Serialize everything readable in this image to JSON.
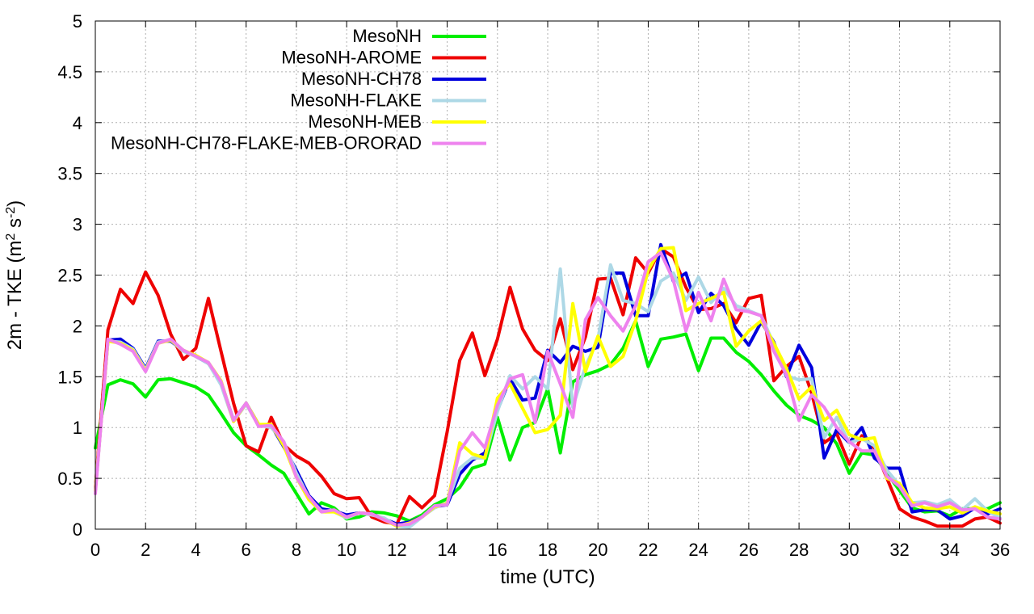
{
  "chart_data": {
    "type": "line",
    "title": "",
    "xlabel": "time (UTC)",
    "ylabel": "2m - TKE (m² s⁻²)",
    "ylabel_parts": {
      "main": "2m - TKE (m",
      "exp1": "2",
      "mid": " s",
      "exp2": "-2",
      "end": ")"
    },
    "xlim": [
      0,
      36
    ],
    "ylim": [
      0,
      5
    ],
    "xticks": [
      0,
      2,
      4,
      6,
      8,
      10,
      12,
      14,
      16,
      18,
      20,
      22,
      24,
      26,
      28,
      30,
      32,
      34,
      36
    ],
    "yticks": [
      0,
      0.5,
      1,
      1.5,
      2,
      2.5,
      3,
      3.5,
      4,
      4.5,
      5
    ],
    "ytick_labels": [
      "0",
      "0.5",
      "1",
      "1.5",
      "2",
      "2.5",
      "3",
      "3.5",
      "4",
      "4.5",
      "5"
    ],
    "grid": true,
    "legend_position": "top-left",
    "series": [
      {
        "name": "MesoNH",
        "color": "#00ee00",
        "x": [
          0,
          0.5,
          1,
          1.5,
          2,
          2.5,
          3,
          3.5,
          4,
          4.5,
          5,
          5.5,
          6,
          6.5,
          7,
          7.5,
          8,
          8.5,
          9,
          9.5,
          10,
          10.5,
          11,
          11.5,
          12,
          12.5,
          13,
          13.5,
          14,
          14.5,
          15,
          15.5,
          16,
          16.5,
          17,
          17.5,
          18,
          18.5,
          19,
          19.5,
          20,
          20.5,
          21,
          21.5,
          22,
          22.5,
          23,
          23.5,
          24,
          24.5,
          25,
          25.5,
          26,
          26.5,
          27,
          27.5,
          28,
          28.5,
          29,
          29.5,
          30,
          30.5,
          31,
          31.5,
          32,
          32.5,
          33,
          33.5,
          34,
          34.5,
          35,
          35.5,
          36
        ],
        "values": [
          0.8,
          1.42,
          1.47,
          1.43,
          1.3,
          1.47,
          1.48,
          1.44,
          1.4,
          1.32,
          1.14,
          0.95,
          0.82,
          0.73,
          0.63,
          0.55,
          0.35,
          0.15,
          0.26,
          0.21,
          0.1,
          0.12,
          0.17,
          0.16,
          0.13,
          0.08,
          0.14,
          0.24,
          0.3,
          0.41,
          0.6,
          0.64,
          1.1,
          0.68,
          1.0,
          1.05,
          1.38,
          0.75,
          1.45,
          1.52,
          1.56,
          1.62,
          1.78,
          2.05,
          1.6,
          1.87,
          1.89,
          1.92,
          1.56,
          1.88,
          1.88,
          1.74,
          1.65,
          1.52,
          1.36,
          1.22,
          1.12,
          1.07,
          1.0,
          0.84,
          0.55,
          0.75,
          0.73,
          0.55,
          0.38,
          0.21,
          0.17,
          0.18,
          0.13,
          0.2,
          0.2,
          0.2,
          0.26
        ]
      },
      {
        "name": "MesoNH-AROME",
        "color": "#ee0000",
        "x": [
          0,
          0.5,
          1,
          1.5,
          2,
          2.5,
          3,
          3.5,
          4,
          4.5,
          5,
          5.5,
          6,
          6.5,
          7,
          7.5,
          8,
          8.5,
          9,
          9.5,
          10,
          10.5,
          11,
          11.5,
          12,
          12.5,
          13,
          13.5,
          14,
          14.5,
          15,
          15.5,
          16,
          16.5,
          17,
          17.5,
          18,
          18.5,
          19,
          19.5,
          20,
          20.5,
          21,
          21.5,
          22,
          22.5,
          23,
          23.5,
          24,
          24.5,
          25,
          25.5,
          26,
          26.5,
          27,
          27.5,
          28,
          28.5,
          29,
          29.5,
          30,
          30.5,
          31,
          31.5,
          32,
          32.5,
          33,
          33.5,
          34,
          34.5,
          35,
          35.5,
          36
        ],
        "values": [
          0.4,
          1.96,
          2.36,
          2.22,
          2.53,
          2.3,
          1.92,
          1.67,
          1.78,
          2.27,
          1.75,
          1.24,
          0.82,
          0.76,
          1.1,
          0.83,
          0.72,
          0.65,
          0.52,
          0.35,
          0.3,
          0.31,
          0.12,
          0.07,
          0.05,
          0.32,
          0.21,
          0.33,
          0.96,
          1.66,
          1.93,
          1.51,
          1.87,
          2.38,
          1.97,
          1.76,
          1.66,
          2.07,
          1.57,
          1.89,
          2.46,
          2.47,
          2.11,
          2.67,
          2.52,
          2.76,
          2.68,
          2.38,
          2.16,
          2.17,
          2.22,
          2.03,
          2.27,
          2.3,
          1.46,
          1.6,
          1.7,
          1.34,
          0.85,
          0.94,
          0.64,
          0.92,
          0.8,
          0.5,
          0.2,
          0.12,
          0.08,
          0.03,
          0.03,
          0.03,
          0.1,
          0.12,
          0.06
        ]
      },
      {
        "name": "MesoNH-CH78",
        "color": "#0000dd",
        "x": [
          0,
          0.5,
          1,
          1.5,
          2,
          2.5,
          3,
          3.5,
          4,
          4.5,
          5,
          5.5,
          6,
          6.5,
          7,
          7.5,
          8,
          8.5,
          9,
          9.5,
          10,
          10.5,
          11,
          11.5,
          12,
          12.5,
          13,
          13.5,
          14,
          14.5,
          15,
          15.5,
          16,
          16.5,
          17,
          17.5,
          18,
          18.5,
          19,
          19.5,
          20,
          20.5,
          21,
          21.5,
          22,
          22.5,
          23,
          23.5,
          24,
          24.5,
          25,
          25.5,
          26,
          26.5,
          27,
          27.5,
          28,
          28.5,
          29,
          29.5,
          30,
          30.5,
          31,
          31.5,
          32,
          32.5,
          33,
          33.5,
          34,
          34.5,
          35,
          35.5,
          36
        ],
        "values": [
          0.38,
          1.86,
          1.87,
          1.78,
          1.58,
          1.85,
          1.85,
          1.76,
          1.7,
          1.63,
          1.45,
          1.07,
          1.24,
          1.03,
          1.02,
          0.81,
          0.58,
          0.33,
          0.2,
          0.18,
          0.14,
          0.16,
          0.15,
          0.1,
          0.05,
          0.07,
          0.12,
          0.22,
          0.24,
          0.54,
          0.68,
          0.75,
          1.17,
          1.48,
          1.27,
          1.29,
          1.76,
          1.64,
          1.8,
          1.75,
          1.79,
          2.52,
          2.52,
          2.1,
          2.1,
          2.8,
          2.44,
          2.52,
          2.13,
          2.32,
          2.2,
          1.97,
          1.81,
          2.04,
          1.84,
          1.5,
          1.81,
          1.59,
          0.7,
          0.98,
          0.85,
          1.0,
          0.7,
          0.6,
          0.6,
          0.17,
          0.19,
          0.19,
          0.1,
          0.13,
          0.21,
          0.15,
          0.2
        ]
      },
      {
        "name": "MesoNH-FLAKE",
        "color": "#add8e6",
        "x": [
          0,
          0.5,
          1,
          1.5,
          2,
          2.5,
          3,
          3.5,
          4,
          4.5,
          5,
          5.5,
          6,
          6.5,
          7,
          7.5,
          8,
          8.5,
          9,
          9.5,
          10,
          10.5,
          11,
          11.5,
          12,
          12.5,
          13,
          13.5,
          14,
          14.5,
          15,
          15.5,
          16,
          16.5,
          17,
          17.5,
          18,
          18.5,
          19,
          19.5,
          20,
          20.5,
          21,
          21.5,
          22,
          22.5,
          23,
          23.5,
          24,
          24.5,
          25,
          25.5,
          26,
          26.5,
          27,
          27.5,
          28,
          28.5,
          29,
          29.5,
          30,
          30.5,
          31,
          31.5,
          32,
          32.5,
          33,
          33.5,
          34,
          34.5,
          35,
          35.5,
          36
        ],
        "values": [
          0.38,
          1.85,
          1.84,
          1.77,
          1.57,
          1.84,
          1.86,
          1.75,
          1.7,
          1.63,
          1.42,
          1.06,
          1.23,
          1.02,
          1.0,
          0.86,
          0.55,
          0.31,
          0.18,
          0.17,
          0.11,
          0.16,
          0.14,
          0.11,
          0.03,
          0.02,
          0.12,
          0.21,
          0.26,
          0.6,
          0.7,
          0.7,
          1.16,
          1.51,
          1.38,
          1.5,
          1.38,
          2.56,
          1.2,
          1.6,
          1.87,
          2.6,
          2.25,
          2.22,
          2.14,
          2.44,
          2.52,
          2.25,
          2.48,
          2.23,
          2.37,
          2.2,
          2.15,
          2.1,
          1.82,
          1.51,
          1.47,
          1.48,
          0.9,
          1.1,
          0.85,
          0.89,
          0.82,
          0.58,
          0.43,
          0.26,
          0.27,
          0.24,
          0.29,
          0.19,
          0.3,
          0.18,
          0.11
        ]
      },
      {
        "name": "MesoNH-MEB",
        "color": "#ffff00",
        "x": [
          0,
          0.5,
          1,
          1.5,
          2,
          2.5,
          3,
          3.5,
          4,
          4.5,
          5,
          5.5,
          6,
          6.5,
          7,
          7.5,
          8,
          8.5,
          9,
          9.5,
          10,
          10.5,
          11,
          11.5,
          12,
          12.5,
          13,
          13.5,
          14,
          14.5,
          15,
          15.5,
          16,
          16.5,
          17,
          17.5,
          18,
          18.5,
          19,
          19.5,
          20,
          20.5,
          21,
          21.5,
          22,
          22.5,
          23,
          23.5,
          24,
          24.5,
          25,
          25.5,
          26,
          26.5,
          27,
          27.5,
          28,
          28.5,
          29,
          29.5,
          30,
          30.5,
          31,
          31.5,
          32,
          32.5,
          33,
          33.5,
          34,
          34.5,
          35,
          35.5,
          36
        ],
        "values": [
          0.38,
          1.85,
          1.83,
          1.76,
          1.56,
          1.83,
          1.86,
          1.76,
          1.71,
          1.64,
          1.46,
          1.06,
          1.24,
          1.03,
          1.03,
          0.82,
          0.51,
          0.29,
          0.17,
          0.17,
          0.12,
          0.16,
          0.15,
          0.09,
          0.03,
          0.06,
          0.12,
          0.22,
          0.25,
          0.85,
          0.74,
          0.7,
          1.29,
          1.43,
          1.19,
          0.95,
          0.98,
          1.12,
          2.22,
          1.55,
          1.9,
          1.6,
          1.7,
          2.05,
          2.55,
          2.76,
          2.77,
          2.15,
          2.22,
          2.27,
          2.33,
          1.8,
          1.95,
          2.05,
          1.83,
          1.58,
          1.28,
          1.4,
          1.07,
          1.17,
          0.93,
          0.88,
          0.9,
          0.5,
          0.45,
          0.26,
          0.21,
          0.2,
          0.22,
          0.16,
          0.22,
          0.18,
          0.15
        ]
      },
      {
        "name": "MesoNH-CH78-FLAKE-MEB-ORORAD",
        "color": "#ee82ee",
        "x": [
          0,
          0.5,
          1,
          1.5,
          2,
          2.5,
          3,
          3.5,
          4,
          4.5,
          5,
          5.5,
          6,
          6.5,
          7,
          7.5,
          8,
          8.5,
          9,
          9.5,
          10,
          10.5,
          11,
          11.5,
          12,
          12.5,
          13,
          13.5,
          14,
          14.5,
          15,
          15.5,
          16,
          16.5,
          17,
          17.5,
          18,
          18.5,
          19,
          19.5,
          20,
          20.5,
          21,
          21.5,
          22,
          22.5,
          23,
          23.5,
          24,
          24.5,
          25,
          25.5,
          26,
          26.5,
          27,
          27.5,
          28,
          28.5,
          29,
          29.5,
          30,
          30.5,
          31,
          31.5,
          32,
          32.5,
          33,
          33.5,
          34,
          34.5,
          35,
          35.5,
          36
        ],
        "values": [
          0.35,
          1.87,
          1.82,
          1.75,
          1.55,
          1.83,
          1.87,
          1.76,
          1.7,
          1.64,
          1.45,
          1.07,
          1.24,
          1.01,
          1.02,
          0.86,
          0.51,
          0.32,
          0.17,
          0.19,
          0.12,
          0.16,
          0.15,
          0.09,
          0.04,
          0.05,
          0.12,
          0.23,
          0.24,
          0.77,
          0.95,
          0.8,
          1.22,
          1.48,
          1.52,
          1.05,
          1.75,
          1.43,
          1.1,
          2.06,
          2.28,
          2.1,
          1.95,
          2.2,
          2.63,
          2.72,
          2.45,
          1.95,
          2.33,
          2.05,
          2.46,
          2.16,
          2.14,
          2.1,
          1.75,
          1.52,
          1.07,
          1.32,
          1.2,
          1.0,
          0.86,
          0.77,
          0.77,
          0.52,
          0.42,
          0.23,
          0.26,
          0.22,
          0.26,
          0.19,
          0.2,
          0.12,
          0.1
        ]
      }
    ]
  }
}
